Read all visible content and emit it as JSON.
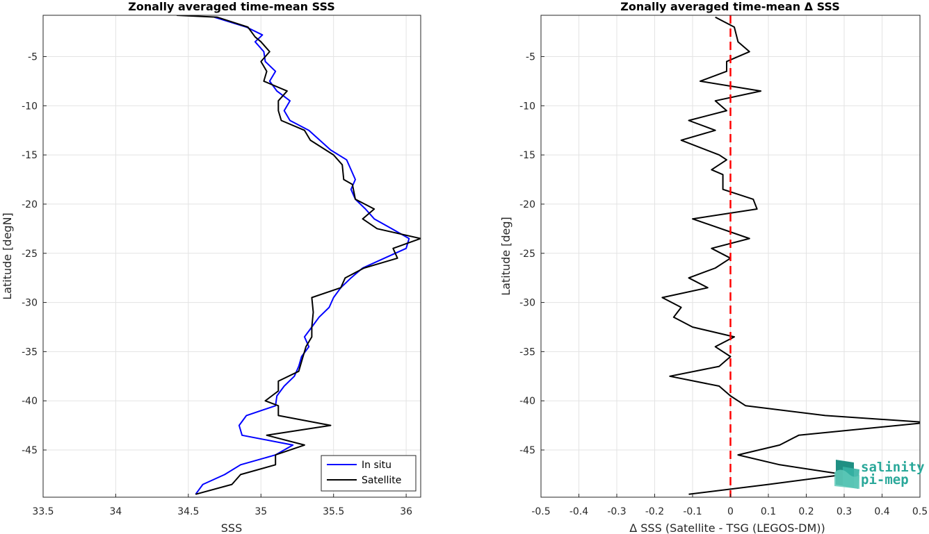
{
  "chart_data": [
    {
      "type": "line",
      "title": "Zonally averaged time-mean SSS",
      "xlabel": "SSS",
      "ylabel": "Latitude [degN]",
      "xlim": [
        33.5,
        36.1
      ],
      "ylim": [
        -49.8,
        -0.8
      ],
      "xticks": [
        33.5,
        34,
        34.5,
        35,
        35.5,
        36
      ],
      "xtick_labels": [
        "33.5",
        "34",
        "34.5",
        "35",
        "35.5",
        "36"
      ],
      "yticks": [
        -5,
        -10,
        -15,
        -20,
        -25,
        -30,
        -35,
        -40,
        -45
      ],
      "ytick_labels": [
        "-5",
        "-10",
        "-15",
        "-20",
        "-25",
        "-30",
        "-35",
        "-40",
        "-45"
      ],
      "grid": true,
      "legend_position": "bottom-right",
      "series": [
        {
          "name": "In situ",
          "color": "#0000ff",
          "points": [
            [
              34.68,
              -1.0
            ],
            [
              34.9,
              -2.0
            ],
            [
              35.01,
              -2.8
            ],
            [
              34.96,
              -3.5
            ],
            [
              35.02,
              -4.5
            ],
            [
              35.03,
              -5.5
            ],
            [
              35.1,
              -6.5
            ],
            [
              35.06,
              -7.5
            ],
            [
              35.11,
              -8.5
            ],
            [
              35.2,
              -9.5
            ],
            [
              35.16,
              -10.5
            ],
            [
              35.2,
              -11.5
            ],
            [
              35.33,
              -12.5
            ],
            [
              35.48,
              -14.5
            ],
            [
              35.59,
              -15.5
            ],
            [
              35.62,
              -16.5
            ],
            [
              35.65,
              -17.5
            ],
            [
              35.62,
              -18.5
            ],
            [
              35.65,
              -19.5
            ],
            [
              35.72,
              -20.5
            ],
            [
              35.78,
              -21.5
            ],
            [
              35.9,
              -22.5
            ],
            [
              36.02,
              -23.5
            ],
            [
              36.0,
              -24.5
            ],
            [
              35.85,
              -25.5
            ],
            [
              35.7,
              -26.5
            ],
            [
              35.62,
              -27.5
            ],
            [
              35.55,
              -28.5
            ],
            [
              35.5,
              -29.5
            ],
            [
              35.47,
              -30.5
            ],
            [
              35.4,
              -31.5
            ],
            [
              35.35,
              -32.5
            ],
            [
              35.3,
              -33.5
            ],
            [
              35.33,
              -34.5
            ],
            [
              35.28,
              -35.5
            ],
            [
              35.26,
              -36.5
            ],
            [
              35.23,
              -37.5
            ],
            [
              35.16,
              -38.5
            ],
            [
              35.11,
              -39.5
            ],
            [
              35.1,
              -40.5
            ],
            [
              34.9,
              -41.5
            ],
            [
              34.85,
              -42.5
            ],
            [
              34.87,
              -43.5
            ],
            [
              35.22,
              -44.5
            ],
            [
              35.1,
              -45.5
            ],
            [
              34.86,
              -46.5
            ],
            [
              34.75,
              -47.5
            ],
            [
              34.6,
              -48.5
            ],
            [
              34.55,
              -49.5
            ]
          ]
        },
        {
          "name": "Satellite",
          "color": "#000000",
          "points": [
            [
              34.42,
              -0.8
            ],
            [
              34.7,
              -1.0
            ],
            [
              34.91,
              -2.0
            ],
            [
              34.96,
              -3.0
            ],
            [
              35.0,
              -3.5
            ],
            [
              35.06,
              -4.5
            ],
            [
              35.0,
              -5.5
            ],
            [
              35.04,
              -6.5
            ],
            [
              35.02,
              -7.5
            ],
            [
              35.18,
              -8.5
            ],
            [
              35.12,
              -9.5
            ],
            [
              35.12,
              -10.5
            ],
            [
              35.14,
              -11.5
            ],
            [
              35.3,
              -12.5
            ],
            [
              35.34,
              -13.5
            ],
            [
              35.5,
              -15.0
            ],
            [
              35.56,
              -16.0
            ],
            [
              35.57,
              -17.5
            ],
            [
              35.63,
              -18.0
            ],
            [
              35.65,
              -19.5
            ],
            [
              35.78,
              -20.5
            ],
            [
              35.7,
              -21.5
            ],
            [
              35.8,
              -22.5
            ],
            [
              36.1,
              -23.5
            ],
            [
              35.91,
              -24.5
            ],
            [
              35.94,
              -25.5
            ],
            [
              35.71,
              -26.5
            ],
            [
              35.58,
              -27.5
            ],
            [
              35.55,
              -28.5
            ],
            [
              35.35,
              -29.5
            ],
            [
              35.36,
              -31.0
            ],
            [
              35.35,
              -32.5
            ],
            [
              35.35,
              -33.5
            ],
            [
              35.31,
              -34.5
            ],
            [
              35.29,
              -35.5
            ],
            [
              35.26,
              -37.0
            ],
            [
              35.12,
              -38.0
            ],
            [
              35.12,
              -39.0
            ],
            [
              35.03,
              -40.0
            ],
            [
              35.12,
              -40.5
            ],
            [
              35.12,
              -41.5
            ],
            [
              35.48,
              -42.5
            ],
            [
              35.04,
              -43.5
            ],
            [
              35.3,
              -44.5
            ],
            [
              35.1,
              -45.5
            ],
            [
              35.1,
              -46.5
            ],
            [
              34.86,
              -47.5
            ],
            [
              34.8,
              -48.5
            ],
            [
              34.55,
              -49.5
            ]
          ]
        }
      ]
    },
    {
      "type": "line",
      "title": "Zonally averaged time-mean Δ SSS",
      "xlabel": "Δ SSS (Satellite - TSG (LEGOS-DM))",
      "ylabel": "Latitude [deg]",
      "xlim": [
        -0.5,
        0.5
      ],
      "ylim": [
        -49.8,
        -0.8
      ],
      "xticks": [
        -0.5,
        -0.4,
        -0.3,
        -0.2,
        -0.1,
        0,
        0.1,
        0.2,
        0.3,
        0.4,
        0.5
      ],
      "xtick_labels": [
        "-0.5",
        "-0.4",
        "-0.3",
        "-0.2",
        "-0.1",
        "0",
        "0.1",
        "0.2",
        "0.3",
        "0.4",
        "0.5"
      ],
      "yticks": [
        -5,
        -10,
        -15,
        -20,
        -25,
        -30,
        -35,
        -40,
        -45
      ],
      "ytick_labels": [
        "-5",
        "-10",
        "-15",
        "-20",
        "-25",
        "-30",
        "-35",
        "-40",
        "-45"
      ],
      "grid": true,
      "reference_line": {
        "x": 0,
        "color": "#ff0000",
        "style": "dashed"
      },
      "series": [
        {
          "name": "",
          "color": "#000000",
          "points": [
            [
              -0.04,
              -1.0
            ],
            [
              0.01,
              -2.0
            ],
            [
              0.02,
              -3.5
            ],
            [
              0.05,
              -4.5
            ],
            [
              -0.01,
              -5.5
            ],
            [
              -0.01,
              -6.5
            ],
            [
              -0.08,
              -7.5
            ],
            [
              0.08,
              -8.5
            ],
            [
              -0.04,
              -9.5
            ],
            [
              -0.01,
              -10.5
            ],
            [
              -0.11,
              -11.5
            ],
            [
              -0.04,
              -12.5
            ],
            [
              -0.13,
              -13.5
            ],
            [
              -0.03,
              -15.0
            ],
            [
              -0.01,
              -15.5
            ],
            [
              -0.05,
              -16.5
            ],
            [
              -0.02,
              -17.0
            ],
            [
              -0.02,
              -18.5
            ],
            [
              0.06,
              -19.5
            ],
            [
              0.07,
              -20.5
            ],
            [
              -0.1,
              -21.5
            ],
            [
              0.05,
              -23.5
            ],
            [
              -0.05,
              -24.5
            ],
            [
              0.0,
              -25.5
            ],
            [
              -0.04,
              -26.5
            ],
            [
              -0.11,
              -27.5
            ],
            [
              -0.06,
              -28.5
            ],
            [
              -0.18,
              -29.5
            ],
            [
              -0.13,
              -30.5
            ],
            [
              -0.15,
              -31.5
            ],
            [
              -0.1,
              -32.5
            ],
            [
              0.01,
              -33.5
            ],
            [
              -0.04,
              -34.5
            ],
            [
              0.0,
              -35.5
            ],
            [
              -0.03,
              -36.5
            ],
            [
              -0.16,
              -37.5
            ],
            [
              -0.03,
              -38.5
            ],
            [
              0.0,
              -39.5
            ],
            [
              0.04,
              -40.5
            ],
            [
              0.25,
              -41.5
            ],
            [
              0.52,
              -42.2
            ],
            [
              0.18,
              -43.5
            ],
            [
              0.13,
              -44.5
            ],
            [
              0.02,
              -45.5
            ],
            [
              0.13,
              -46.5
            ],
            [
              0.3,
              -47.5
            ],
            [
              0.1,
              -48.5
            ],
            [
              -0.11,
              -49.5
            ]
          ]
        }
      ]
    }
  ],
  "logo": {
    "line1": "salinity",
    "line2": "pi-mep"
  }
}
